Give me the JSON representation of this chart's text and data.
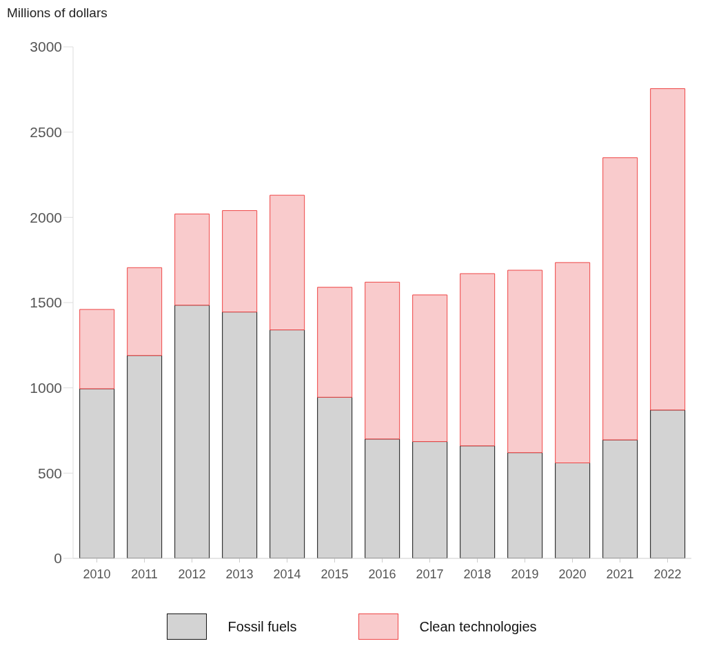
{
  "chart_data": {
    "type": "bar",
    "ylabel": "Millions of dollars",
    "stacked": true,
    "legend": "bottom",
    "grid": false,
    "categories": [
      "2010",
      "2011",
      "2012",
      "2013",
      "2014",
      "2015",
      "2016",
      "2017",
      "2018",
      "2019",
      "2020",
      "2021",
      "2022"
    ],
    "ylim": [
      0,
      3000
    ],
    "yticks": [
      0,
      500,
      1000,
      1500,
      2000,
      2500,
      3000
    ],
    "series": [
      {
        "name": "Fossil fuels",
        "color": "#d3d3d3",
        "values": [
          995,
          1190,
          1485,
          1445,
          1340,
          945,
          700,
          685,
          660,
          620,
          560,
          695,
          870
        ]
      },
      {
        "name": "Clean technologies",
        "color": "#f9cbcc",
        "values": [
          465,
          515,
          535,
          595,
          790,
          645,
          920,
          860,
          1010,
          1070,
          1175,
          1655,
          1885
        ]
      }
    ]
  }
}
